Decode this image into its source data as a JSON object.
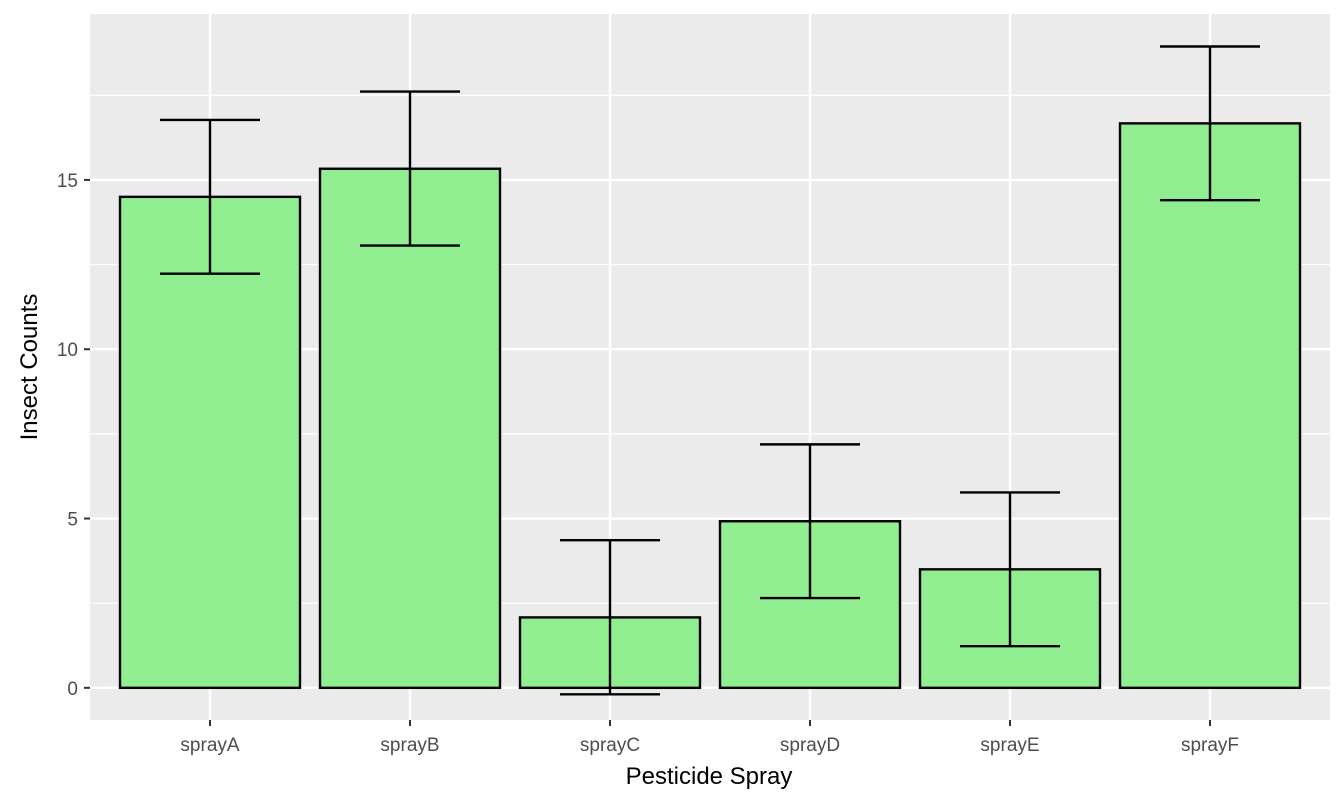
{
  "chart_data": {
    "type": "bar",
    "title": "",
    "xlabel": "Pesticide Spray",
    "ylabel": "Insect Counts",
    "categories": [
      "sprayA",
      "sprayB",
      "sprayC",
      "sprayD",
      "sprayE",
      "sprayF"
    ],
    "values": [
      14.5,
      15.33,
      2.08,
      4.92,
      3.5,
      16.67
    ],
    "error_bars": {
      "lower": [
        12.23,
        13.06,
        -0.19,
        2.65,
        1.23,
        14.4
      ],
      "upper": [
        16.77,
        17.61,
        4.36,
        7.19,
        5.77,
        18.94
      ]
    },
    "yticks": [
      0,
      5,
      10,
      15
    ],
    "ylim": [
      -0.95,
      19.9
    ],
    "grid": true,
    "legend": "none",
    "colors": {
      "bar_fill": "#90ee90",
      "bar_stroke": "#000000",
      "panel_background": "#ebebeb",
      "grid": "#ffffff"
    }
  }
}
